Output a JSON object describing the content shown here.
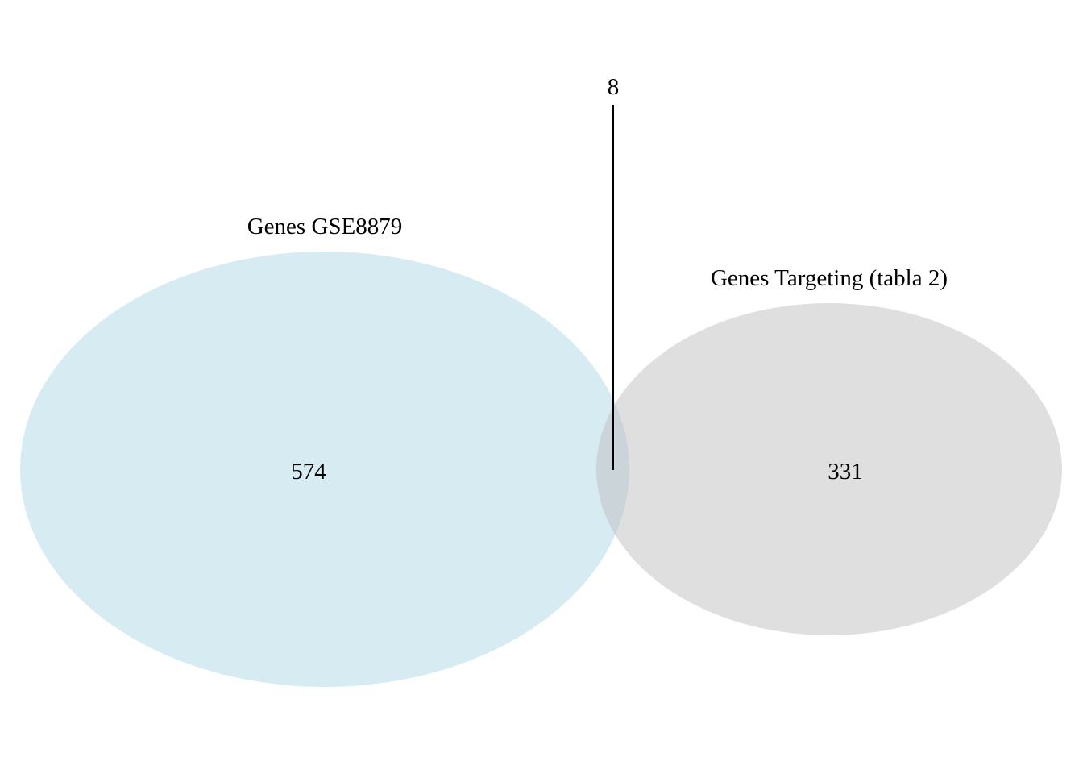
{
  "diagram": {
    "type": "venn",
    "sets": [
      {
        "label": "Genes GSE8879",
        "only_count": "574",
        "color": "#add8e6"
      },
      {
        "label": "Genes Targeting (tabla 2)",
        "only_count": "331",
        "color": "#c0c0c0"
      }
    ],
    "intersection": {
      "count": "8"
    },
    "background": "#ffffff"
  }
}
